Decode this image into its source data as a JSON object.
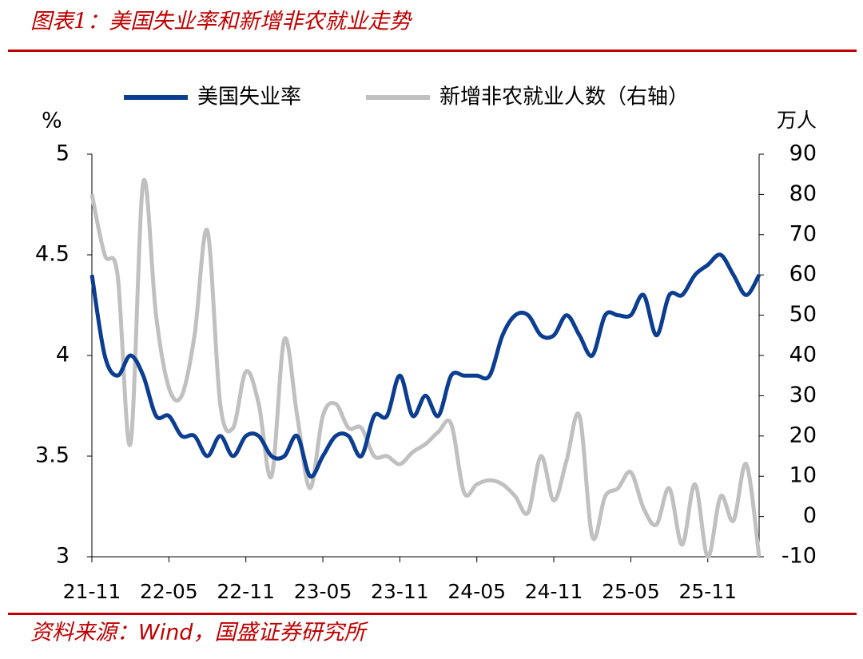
{
  "chart_data": {
    "type": "line",
    "title": "图表1：美国失业率和新增非农就业走势",
    "source": "资料来源：Wind，国盛证券研究所",
    "y_label": "%",
    "y2_label": "万人",
    "categories": [
      "21-11",
      null,
      null,
      null,
      null,
      null,
      "22-05",
      null,
      null,
      null,
      null,
      null,
      "22-11",
      null,
      null,
      null,
      null,
      null,
      "23-05",
      null,
      null,
      null,
      null,
      null,
      "23-11",
      null,
      null,
      null,
      null,
      null,
      "24-05",
      null,
      null,
      null,
      null,
      null,
      "24-11",
      null,
      null,
      null,
      null,
      null,
      "25-05",
      null,
      null,
      null,
      null,
      null,
      "25-11",
      null,
      null,
      null,
      null
    ],
    "series": [
      {
        "name": "美国失业率",
        "color": "#0b3d91",
        "values": [
          4.4,
          4.0,
          3.9,
          4.0,
          3.9,
          3.7,
          3.7,
          3.6,
          3.6,
          3.5,
          3.6,
          3.5,
          3.6,
          3.6,
          3.5,
          3.5,
          3.6,
          3.4,
          3.5,
          3.6,
          3.6,
          3.5,
          3.7,
          3.7,
          3.9,
          3.7,
          3.8,
          3.7,
          3.9,
          3.9,
          3.9,
          3.9,
          4.1,
          4.2,
          4.2,
          4.1,
          4.1,
          4.2,
          4.1,
          4.0,
          4.2,
          4.2,
          4.2,
          4.3,
          4.1,
          4.3,
          4.3,
          4.4,
          4.45,
          4.5,
          4.4,
          4.3,
          4.4
        ]
      },
      {
        "name": "新增非农就业人数（右轴）",
        "color": "#c0c0c0",
        "axis": "y2",
        "values": [
          80,
          65,
          60,
          18,
          83,
          50,
          32,
          30,
          45,
          71,
          28,
          22,
          36,
          28,
          10,
          44,
          25,
          7,
          25,
          28,
          22,
          22,
          15,
          15,
          13,
          16,
          18,
          21,
          23,
          6,
          8,
          9,
          8,
          5,
          1,
          15,
          4,
          14,
          25,
          -5,
          5,
          7,
          11,
          2,
          -2,
          7,
          -7,
          8,
          -10,
          5,
          -1,
          13,
          -10
        ]
      }
    ],
    "ylim": [
      3,
      5
    ],
    "yticks": [
      3,
      3.5,
      4,
      4.5,
      5
    ],
    "y2lim": [
      -10,
      90
    ],
    "y2ticks": [
      -10,
      0,
      10,
      20,
      30,
      40,
      50,
      60,
      70,
      80,
      90
    ]
  }
}
